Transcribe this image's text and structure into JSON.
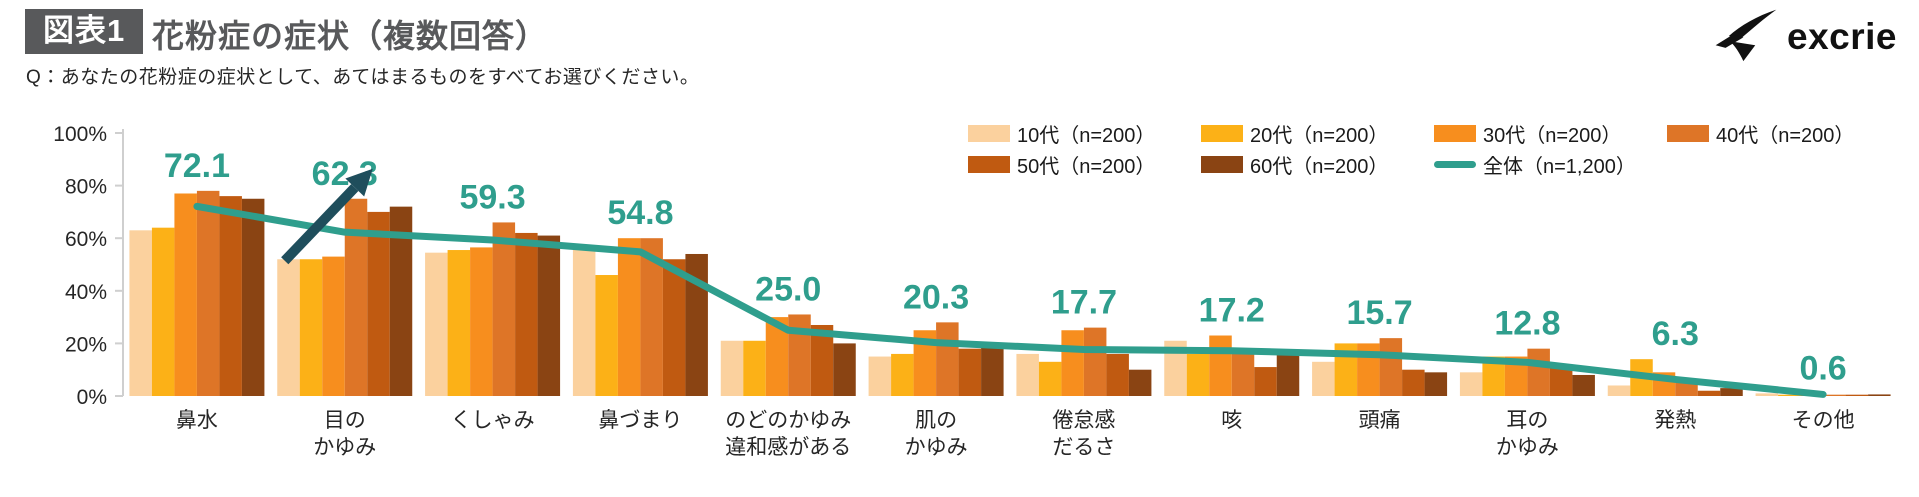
{
  "header": {
    "badge": "図表1",
    "title": "花粉症の症状（複数回答）",
    "brand": "excrie"
  },
  "question": "Q：あなたの花粉症の症状として、あてはまるものをすべてお選びください。",
  "legend": {
    "items": [
      {
        "key": "age10",
        "label": "10代（n=200）",
        "color": "#FBD19E",
        "type": "box"
      },
      {
        "key": "age20",
        "label": "20代（n=200）",
        "color": "#FCB117",
        "type": "box"
      },
      {
        "key": "age30",
        "label": "30代（n=200）",
        "color": "#F78E1E",
        "type": "box"
      },
      {
        "key": "age40",
        "label": "40代（n=200）",
        "color": "#DE7527",
        "type": "box"
      },
      {
        "key": "age50",
        "label": "50代（n=200）",
        "color": "#C05A11",
        "type": "box"
      },
      {
        "key": "age60",
        "label": "60代（n=200）",
        "color": "#8A4413",
        "type": "box"
      },
      {
        "key": "overall",
        "label": "全体（n=1,200）",
        "color": "#2F9E8D",
        "type": "line"
      }
    ]
  },
  "chart_data": {
    "type": "bar",
    "title": "花粉症の症状（複数回答）",
    "xlabel": "",
    "ylabel": "",
    "ylim": [
      0,
      100
    ],
    "ytick_labels": [
      "0%",
      "20%",
      "40%",
      "60%",
      "80%",
      "100%"
    ],
    "ytick_values": [
      0,
      20,
      40,
      60,
      80,
      100
    ],
    "grid": false,
    "legend_position": "top-right",
    "categories": [
      "鼻水",
      "目の\nかゆみ",
      "くしゃみ",
      "鼻づまり",
      "のどのかゆみ\n違和感がある",
      "肌の\nかゆみ",
      "倦怠感\nだるさ",
      "咳",
      "頭痛",
      "耳の\nかゆみ",
      "発熱",
      "その他"
    ],
    "series": [
      {
        "key": "age10",
        "name": "10代（n=200）",
        "color": "#FBD19E",
        "values": [
          63,
          52,
          54.5,
          57,
          21,
          15,
          16,
          21,
          13,
          9,
          4,
          1
        ]
      },
      {
        "key": "age20",
        "name": "20代（n=200）",
        "color": "#FCB117",
        "values": [
          64,
          52,
          55.5,
          46,
          21,
          16,
          13,
          16,
          20,
          15,
          14,
          0.5
        ]
      },
      {
        "key": "age30",
        "name": "30代（n=200）",
        "color": "#F78E1E",
        "values": [
          77,
          53,
          56.5,
          60,
          30,
          25,
          25,
          23,
          20,
          15,
          9,
          0.5
        ]
      },
      {
        "key": "age40",
        "name": "40代（n=200）",
        "color": "#DE7527",
        "values": [
          78,
          75,
          66,
          60,
          31,
          28,
          26,
          16,
          22,
          18,
          6,
          0.5
        ]
      },
      {
        "key": "age50",
        "name": "50代（n=200）",
        "color": "#C05A11",
        "values": [
          76,
          70,
          62,
          52,
          27,
          18,
          16,
          11,
          10,
          12,
          2,
          0.5
        ]
      },
      {
        "key": "age60",
        "name": "60代（n=200）",
        "color": "#8A4413",
        "values": [
          75,
          72,
          61,
          54,
          20,
          20,
          10,
          16,
          9,
          8,
          3,
          0.6
        ]
      }
    ],
    "line_series": {
      "key": "overall",
      "name": "全体（n=1,200）",
      "color": "#2F9E8D",
      "values": [
        72.1,
        62.3,
        59.3,
        54.8,
        25.0,
        20.3,
        17.7,
        17.2,
        15.7,
        12.8,
        6.3,
        0.6
      ]
    },
    "value_labels": [
      "72.1",
      "62.3",
      "59.3",
      "54.8",
      "25.0",
      "20.3",
      "17.7",
      "17.2",
      "15.7",
      "12.8",
      "6.3",
      "0.6"
    ],
    "value_label_color": "#2F9E8D",
    "annotation_arrow": {
      "target_category_index": 1,
      "color": "#1F4E5C"
    }
  }
}
